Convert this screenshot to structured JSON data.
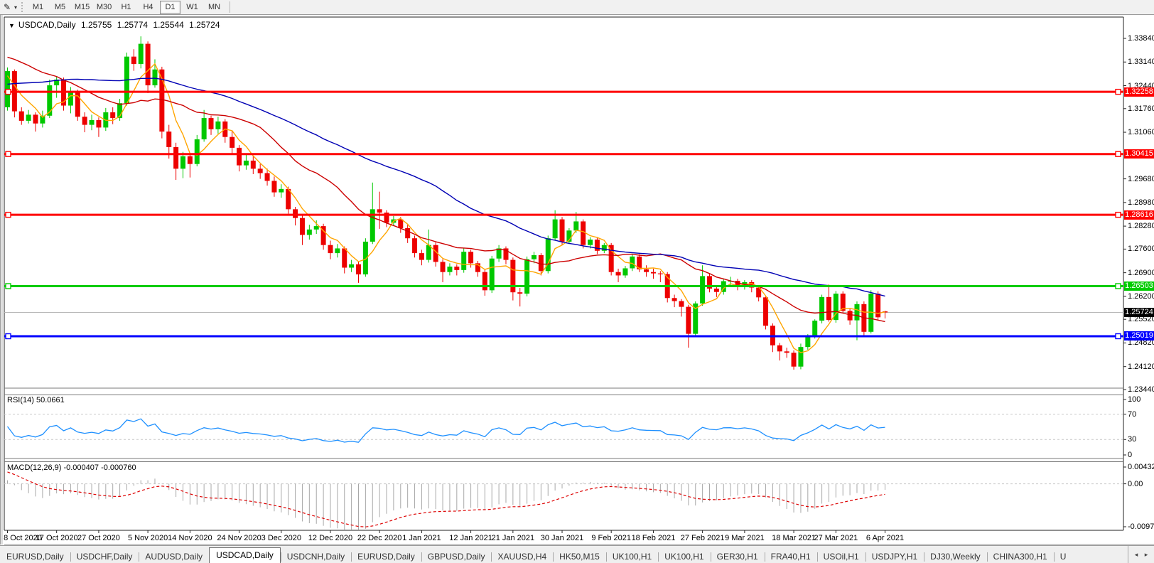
{
  "toolbar": {
    "cursor_tool": "pencil-annotation-tool",
    "timeframes": [
      "M1",
      "M5",
      "M15",
      "M30",
      "H1",
      "H4",
      "D1",
      "W1",
      "MN"
    ],
    "active_timeframe": "D1"
  },
  "chart": {
    "symbol": "USDCAD,Daily",
    "ohlc": {
      "open": "1.25755",
      "high": "1.25774",
      "low": "1.25544",
      "close": "1.25724"
    }
  },
  "chart_data": {
    "type": "candlestick",
    "symbol": "USDCAD",
    "timeframe": "Daily",
    "y_range": [
      1.2344,
      1.3384
    ],
    "y_axis_labels": [
      "1.33840",
      "1.33140",
      "1.32440",
      "1.31760",
      "1.31060",
      "1.29680",
      "1.28980",
      "1.28280",
      "1.27600",
      "1.26900",
      "1.26200",
      "1.25520",
      "1.24820",
      "1.24120",
      "1.23440"
    ],
    "date_labels": [
      "8 Oct 2020",
      "17 Oct 2020",
      "27 Oct 2020",
      "5 Nov 2020",
      "14 Nov 2020",
      "24 Nov 2020",
      "3 Dec 2020",
      "12 Dec 2020",
      "22 Dec 2020",
      "1 Jan 2021",
      "12 Jan 2021",
      "21 Jan 2021",
      "30 Jan 2021",
      "9 Feb 2021",
      "18 Feb 2021",
      "27 Feb 2021",
      "9 Mar 2021",
      "18 Mar 2021",
      "27 Mar 2021",
      "6 Apr 2021"
    ],
    "label_bar_indices": [
      0,
      7,
      13,
      20,
      26,
      33,
      39,
      46,
      53,
      59,
      66,
      72,
      79,
      86,
      92,
      99,
      105,
      112,
      118,
      125
    ],
    "levels": [
      {
        "price": 1.32258,
        "label": "1.32258",
        "color": "#ff0000",
        "width": 3
      },
      {
        "price": 1.30415,
        "label": "1.30415",
        "color": "#ff0000",
        "width": 3
      },
      {
        "price": 1.28616,
        "label": "1.28616",
        "color": "#ff0000",
        "width": 3
      },
      {
        "price": 1.26503,
        "label": "1.26503",
        "color": "#00cc00",
        "width": 3
      },
      {
        "price": 1.25019,
        "label": "1.25019",
        "color": "#0000ff",
        "width": 3
      }
    ],
    "current_price": {
      "price": 1.25724,
      "label": "1.25724",
      "line_color": "#b8b8b8",
      "badge_color": "#000000"
    },
    "up_color": "#00c800",
    "down_color": "#ed0000",
    "moving_averages": [
      {
        "period": 5,
        "color": "#ffa500"
      },
      {
        "period": 20,
        "color": "#cc0000"
      },
      {
        "period": 45,
        "color": "#0000b4"
      }
    ],
    "preroll_closes": [
      1.306,
      1.3075,
      1.309,
      1.3105,
      1.3088,
      1.311,
      1.3125,
      1.314,
      1.3128,
      1.315,
      1.3142,
      1.3165,
      1.3158,
      1.318,
      1.3195,
      1.3185,
      1.321,
      1.3225,
      1.324,
      1.3228,
      1.3252,
      1.3268,
      1.3255,
      1.328,
      1.3295,
      1.331,
      1.3298,
      1.3322,
      1.334,
      1.3355,
      1.3342,
      1.3368,
      1.338,
      1.3395,
      1.3378,
      1.336,
      1.3345,
      1.3362,
      1.334,
      1.3318,
      1.3298,
      1.3312,
      1.3285,
      1.3255,
      1.3228
    ],
    "candles": [
      [
        1.318,
        1.3298,
        1.317,
        1.3287
      ],
      [
        1.3287,
        1.3292,
        1.315,
        1.3168
      ],
      [
        1.3168,
        1.318,
        1.3128,
        1.314
      ],
      [
        1.314,
        1.3172,
        1.3132,
        1.3158
      ],
      [
        1.3158,
        1.3165,
        1.3108,
        1.3132
      ],
      [
        1.3132,
        1.317,
        1.312,
        1.3155
      ],
      [
        1.3155,
        1.3262,
        1.3148,
        1.3245
      ],
      [
        1.3245,
        1.3272,
        1.3208,
        1.3262
      ],
      [
        1.3262,
        1.3268,
        1.317,
        1.3185
      ],
      [
        1.3185,
        1.324,
        1.3162,
        1.3225
      ],
      [
        1.3225,
        1.3232,
        1.314,
        1.3152
      ],
      [
        1.3152,
        1.3165,
        1.3106,
        1.3128
      ],
      [
        1.3128,
        1.3158,
        1.3112,
        1.3142
      ],
      [
        1.3142,
        1.315,
        1.3092,
        1.312
      ],
      [
        1.312,
        1.3178,
        1.311,
        1.3165
      ],
      [
        1.3165,
        1.318,
        1.313,
        1.3148
      ],
      [
        1.3148,
        1.3205,
        1.314,
        1.3192
      ],
      [
        1.3192,
        1.3342,
        1.3185,
        1.333
      ],
      [
        1.333,
        1.3352,
        1.3288,
        1.3308
      ],
      [
        1.3308,
        1.339,
        1.3295,
        1.3368
      ],
      [
        1.3368,
        1.3375,
        1.3222,
        1.3245
      ],
      [
        1.3245,
        1.3322,
        1.3238,
        1.3292
      ],
      [
        1.3292,
        1.33,
        1.3088,
        1.3108
      ],
      [
        1.3108,
        1.3128,
        1.3028,
        1.3062
      ],
      [
        1.3062,
        1.3075,
        1.2965,
        1.2998
      ],
      [
        1.2998,
        1.3048,
        1.297,
        1.3035
      ],
      [
        1.3035,
        1.3042,
        1.2972,
        1.3012
      ],
      [
        1.3012,
        1.3098,
        1.3005,
        1.3085
      ],
      [
        1.3085,
        1.3172,
        1.3078,
        1.3148
      ],
      [
        1.3148,
        1.3155,
        1.3098,
        1.3115
      ],
      [
        1.3115,
        1.3152,
        1.3102,
        1.3138
      ],
      [
        1.3138,
        1.3145,
        1.3075,
        1.3092
      ],
      [
        1.3092,
        1.311,
        1.3042,
        1.306
      ],
      [
        1.306,
        1.3068,
        1.299,
        1.3008
      ],
      [
        1.3008,
        1.304,
        1.2995,
        1.3022
      ],
      [
        1.3022,
        1.3035,
        1.2982,
        1.2998
      ],
      [
        1.2998,
        1.3012,
        1.2968,
        1.2985
      ],
      [
        1.2985,
        1.2998,
        1.2948,
        1.2962
      ],
      [
        1.2962,
        1.2975,
        1.2915,
        1.2928
      ],
      [
        1.2928,
        1.2952,
        1.2912,
        1.2938
      ],
      [
        1.2938,
        1.2945,
        1.2865,
        1.2878
      ],
      [
        1.2878,
        1.2885,
        1.283,
        1.2852
      ],
      [
        1.2852,
        1.286,
        1.2772,
        1.2802
      ],
      [
        1.2802,
        1.2832,
        1.2788,
        1.2818
      ],
      [
        1.2818,
        1.2845,
        1.2805,
        1.2828
      ],
      [
        1.2828,
        1.2835,
        1.2758,
        1.2772
      ],
      [
        1.2772,
        1.2785,
        1.273,
        1.2748
      ],
      [
        1.2748,
        1.2775,
        1.2735,
        1.2762
      ],
      [
        1.2762,
        1.2768,
        1.2688,
        1.2705
      ],
      [
        1.2705,
        1.2728,
        1.2692,
        1.2715
      ],
      [
        1.2715,
        1.2722,
        1.266,
        1.2685
      ],
      [
        1.2685,
        1.2792,
        1.2678,
        1.2782
      ],
      [
        1.2782,
        1.2957,
        1.2775,
        1.2878
      ],
      [
        1.2878,
        1.293,
        1.282,
        1.2868
      ],
      [
        1.2868,
        1.2875,
        1.2825,
        1.2838
      ],
      [
        1.2838,
        1.2858,
        1.2828,
        1.2848
      ],
      [
        1.2848,
        1.2855,
        1.2808,
        1.2822
      ],
      [
        1.2822,
        1.2832,
        1.2778,
        1.2792
      ],
      [
        1.2792,
        1.28,
        1.2735,
        1.2748
      ],
      [
        1.2748,
        1.2758,
        1.2712,
        1.2728
      ],
      [
        1.2728,
        1.2818,
        1.272,
        1.2772
      ],
      [
        1.2772,
        1.278,
        1.2708,
        1.2722
      ],
      [
        1.2722,
        1.273,
        1.2662,
        1.2692
      ],
      [
        1.2692,
        1.2718,
        1.2682,
        1.2708
      ],
      [
        1.2708,
        1.2715,
        1.2682,
        1.2698
      ],
      [
        1.2698,
        1.2762,
        1.269,
        1.2752
      ],
      [
        1.2752,
        1.2758,
        1.2705,
        1.2718
      ],
      [
        1.2718,
        1.2725,
        1.2678,
        1.2692
      ],
      [
        1.2692,
        1.27,
        1.2622,
        1.2638
      ],
      [
        1.2638,
        1.274,
        1.263,
        1.2732
      ],
      [
        1.2732,
        1.2772,
        1.2722,
        1.2762
      ],
      [
        1.2762,
        1.2768,
        1.2715,
        1.2728
      ],
      [
        1.2728,
        1.2735,
        1.2608,
        1.2632
      ],
      [
        1.2632,
        1.2645,
        1.259,
        1.2628
      ],
      [
        1.2628,
        1.2738,
        1.262,
        1.273
      ],
      [
        1.273,
        1.2752,
        1.2718,
        1.2742
      ],
      [
        1.2742,
        1.2748,
        1.2682,
        1.2695
      ],
      [
        1.2695,
        1.28,
        1.2688,
        1.2792
      ],
      [
        1.2792,
        1.2875,
        1.2785,
        1.2848
      ],
      [
        1.2848,
        1.2855,
        1.2772,
        1.2782
      ],
      [
        1.2782,
        1.2822,
        1.2775,
        1.2815
      ],
      [
        1.2815,
        1.287,
        1.2808,
        1.2842
      ],
      [
        1.2842,
        1.2848,
        1.2762,
        1.2772
      ],
      [
        1.2772,
        1.2795,
        1.2762,
        1.2788
      ],
      [
        1.2788,
        1.2795,
        1.2745,
        1.2755
      ],
      [
        1.2755,
        1.2778,
        1.2748,
        1.2772
      ],
      [
        1.2772,
        1.2778,
        1.2682,
        1.2692
      ],
      [
        1.2692,
        1.2702,
        1.2662,
        1.2682
      ],
      [
        1.2682,
        1.271,
        1.2675,
        1.2703
      ],
      [
        1.2703,
        1.2745,
        1.2695,
        1.2738
      ],
      [
        1.2738,
        1.2745,
        1.2692,
        1.27
      ],
      [
        1.27,
        1.2712,
        1.2678,
        1.2692
      ],
      [
        1.2692,
        1.2702,
        1.2672,
        1.2688
      ],
      [
        1.2688,
        1.2695,
        1.2662,
        1.2686
      ],
      [
        1.2686,
        1.2692,
        1.2602,
        1.2615
      ],
      [
        1.2615,
        1.2625,
        1.2588,
        1.2606
      ],
      [
        1.2606,
        1.2612,
        1.256,
        1.2589
      ],
      [
        1.2589,
        1.2595,
        1.2468,
        1.2509
      ],
      [
        1.2509,
        1.2605,
        1.2502,
        1.2599
      ],
      [
        1.2599,
        1.2712,
        1.2592,
        1.268
      ],
      [
        1.268,
        1.2688,
        1.2632,
        1.2643
      ],
      [
        1.2643,
        1.2652,
        1.2618,
        1.2633
      ],
      [
        1.2633,
        1.2672,
        1.2625,
        1.2665
      ],
      [
        1.2665,
        1.2678,
        1.2648,
        1.2666
      ],
      [
        1.2666,
        1.2672,
        1.2638,
        1.265
      ],
      [
        1.265,
        1.2668,
        1.264,
        1.2662
      ],
      [
        1.2662,
        1.2668,
        1.2632,
        1.2646
      ],
      [
        1.2646,
        1.2652,
        1.2605,
        1.2617
      ],
      [
        1.2617,
        1.2622,
        1.2522,
        1.2533
      ],
      [
        1.2533,
        1.254,
        1.2455,
        1.2475
      ],
      [
        1.2475,
        1.2482,
        1.243,
        1.2457
      ],
      [
        1.2457,
        1.2468,
        1.2438,
        1.2453
      ],
      [
        1.2453,
        1.246,
        1.2403,
        1.2412
      ],
      [
        1.2412,
        1.248,
        1.2404,
        1.247
      ],
      [
        1.247,
        1.2508,
        1.2462,
        1.2502
      ],
      [
        1.2502,
        1.2552,
        1.2495,
        1.2548
      ],
      [
        1.2548,
        1.2625,
        1.254,
        1.2618
      ],
      [
        1.2618,
        1.2655,
        1.2545,
        1.255
      ],
      [
        1.255,
        1.2636,
        1.2542,
        1.2628
      ],
      [
        1.2628,
        1.2635,
        1.257,
        1.2577
      ],
      [
        1.2577,
        1.2585,
        1.2536,
        1.2549
      ],
      [
        1.2549,
        1.2605,
        1.249,
        1.2597
      ],
      [
        1.2597,
        1.2605,
        1.2502,
        1.2515
      ],
      [
        1.2515,
        1.2638,
        1.251,
        1.2628
      ],
      [
        1.2628,
        1.2635,
        1.2548,
        1.2558
      ],
      [
        1.25755,
        1.25774,
        1.25544,
        1.25724
      ]
    ],
    "rsi": {
      "label": "RSI(14) 50.0661",
      "period": 14,
      "color": "#1e90ff",
      "levels": [
        70,
        30
      ],
      "axis_labels": [
        "100",
        "70",
        "30",
        "0"
      ],
      "axis_values": [
        100,
        70,
        30,
        0
      ]
    },
    "macd": {
      "label": "MACD(12,26,9) -0.000407 -0.000760",
      "fast": 12,
      "slow": 26,
      "signal": 9,
      "hist_color": "#a8a8a8",
      "signal_color": "#dd0000",
      "axis_labels": [
        "0.004328",
        "0.00",
        "-0.00977"
      ],
      "axis_values": [
        0.004328,
        0,
        -0.00977
      ]
    }
  },
  "tabs": {
    "items": [
      "EURUSD,Daily",
      "USDCHF,Daily",
      "AUDUSD,Daily",
      "USDCAD,Daily",
      "USDCNH,Daily",
      "EURUSD,Daily",
      "GBPUSD,Daily",
      "XAUUSD,H4",
      "HK50,M15",
      "UK100,H1",
      "UK100,H1",
      "GER30,H1",
      "FRA40,H1",
      "USOil,H1",
      "USDJPY,H1",
      "DJ30,Weekly",
      "CHINA300,H1",
      "U"
    ],
    "active_index": 3,
    "scroll_left": "◂",
    "scroll_right": "▸"
  },
  "icons": {
    "pencil": "✎",
    "caret_down": "▾",
    "collapse_triangle": "▼"
  }
}
